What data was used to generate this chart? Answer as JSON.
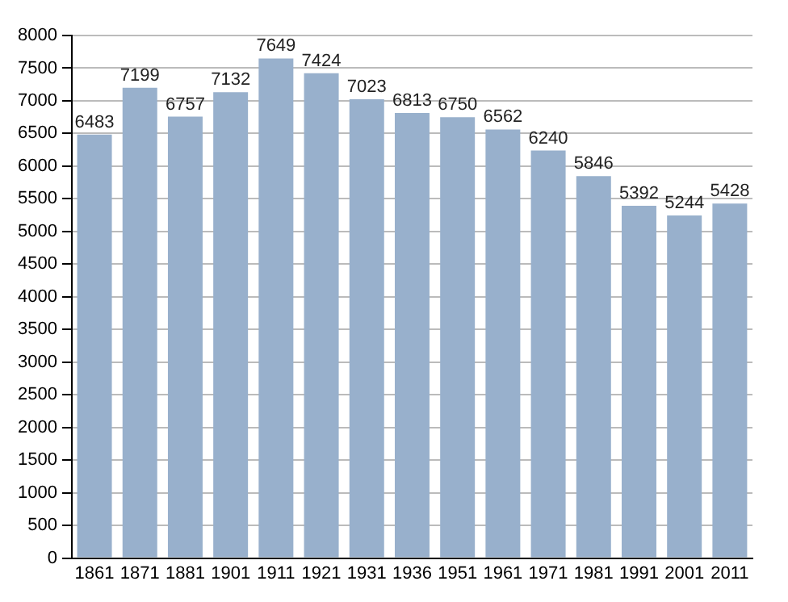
{
  "chart_data": {
    "type": "bar",
    "categories": [
      "1861",
      "1871",
      "1881",
      "1901",
      "1911",
      "1921",
      "1931",
      "1936",
      "1951",
      "1961",
      "1971",
      "1981",
      "1991",
      "2001",
      "2011"
    ],
    "values": [
      6483,
      7199,
      6757,
      7132,
      7649,
      7424,
      7023,
      6813,
      6750,
      6562,
      6240,
      5846,
      5392,
      5244,
      5428
    ],
    "color": "#98b0cc",
    "ylim": [
      0,
      8000
    ],
    "yticks": [
      0,
      500,
      1000,
      1500,
      2000,
      2500,
      3000,
      3500,
      4000,
      4500,
      5000,
      5500,
      6000,
      6500,
      7000,
      7500,
      8000
    ],
    "grid": "y",
    "data_labels": true
  }
}
